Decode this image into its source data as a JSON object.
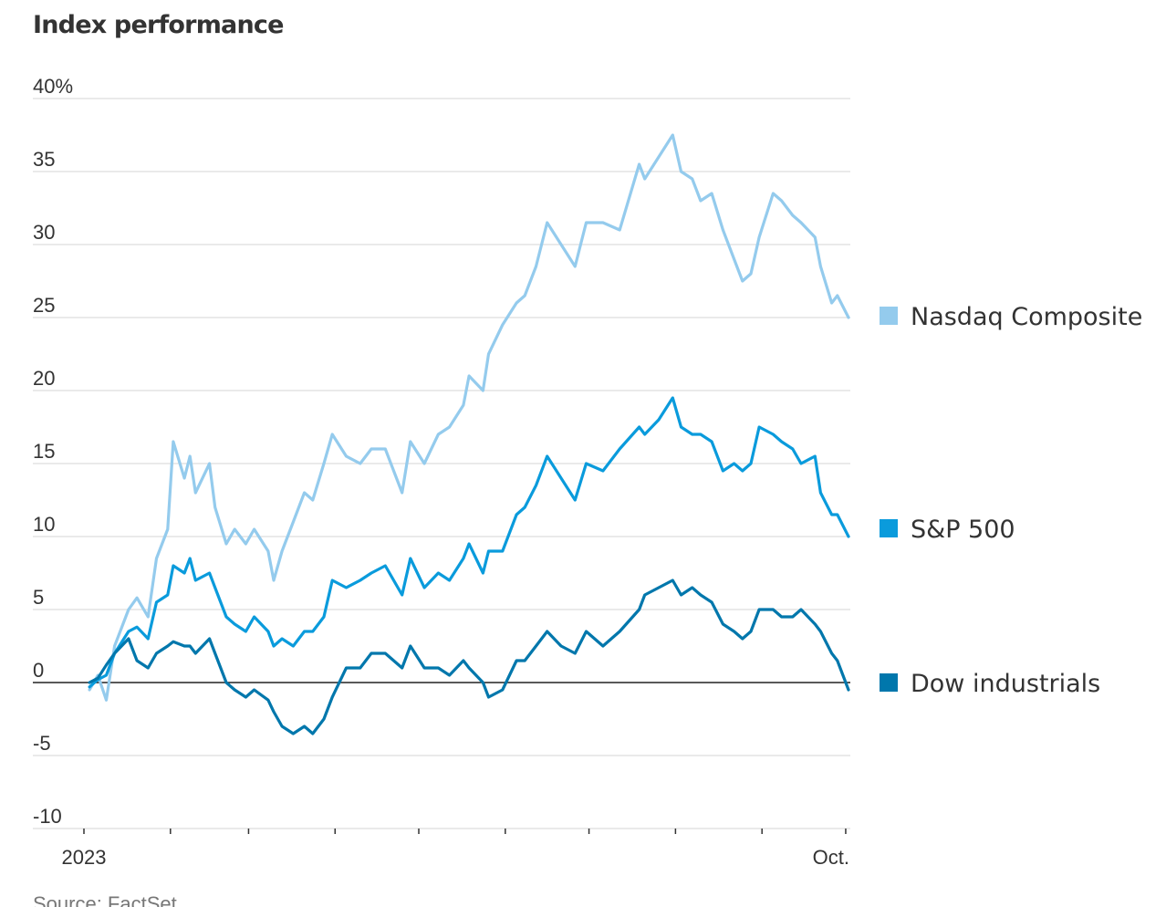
{
  "title": "Index performance",
  "source": "Source: FactSet",
  "colors": {
    "grid": "#dddddd",
    "zero_line": "#222222",
    "axis_text": "#333333"
  },
  "chart_data": {
    "type": "line",
    "title": "Index performance",
    "xlabel": "",
    "ylabel": "",
    "ylim": [
      -10,
      40
    ],
    "yticks": [
      {
        "value": 40,
        "label": "40%"
      },
      {
        "value": 35,
        "label": "35"
      },
      {
        "value": 30,
        "label": "30"
      },
      {
        "value": 25,
        "label": "25"
      },
      {
        "value": 20,
        "label": "20"
      },
      {
        "value": 15,
        "label": "15"
      },
      {
        "value": 10,
        "label": "10"
      },
      {
        "value": 5,
        "label": "5"
      },
      {
        "value": 0,
        "label": "0"
      },
      {
        "value": -5,
        "label": "-5"
      },
      {
        "value": -10,
        "label": "-10"
      }
    ],
    "xlim": [
      "2023-01-01",
      "2023-10-02"
    ],
    "xticks": [
      {
        "date": "2023-01-01",
        "label": "2023"
      },
      {
        "date": "2023-02-01",
        "label": ""
      },
      {
        "date": "2023-03-01",
        "label": ""
      },
      {
        "date": "2023-04-01",
        "label": ""
      },
      {
        "date": "2023-05-01",
        "label": ""
      },
      {
        "date": "2023-06-01",
        "label": ""
      },
      {
        "date": "2023-07-01",
        "label": ""
      },
      {
        "date": "2023-08-01",
        "label": ""
      },
      {
        "date": "2023-09-01",
        "label": ""
      },
      {
        "date": "2023-10-01",
        "label": "Oct."
      }
    ],
    "grid": true,
    "legend": "right",
    "series": [
      {
        "name": "Nasdaq Composite",
        "color": "#94cbed",
        "points": [
          [
            "2023-01-03",
            -0.5
          ],
          [
            "2023-01-06",
            0.5
          ],
          [
            "2023-01-09",
            -1.2
          ],
          [
            "2023-01-12",
            2.5
          ],
          [
            "2023-01-17",
            5.0
          ],
          [
            "2023-01-20",
            5.8
          ],
          [
            "2023-01-24",
            4.5
          ],
          [
            "2023-01-27",
            8.5
          ],
          [
            "2023-01-31",
            10.5
          ],
          [
            "2023-02-02",
            16.5
          ],
          [
            "2023-02-06",
            14.0
          ],
          [
            "2023-02-08",
            15.5
          ],
          [
            "2023-02-10",
            13.0
          ],
          [
            "2023-02-15",
            15.0
          ],
          [
            "2023-02-17",
            12.0
          ],
          [
            "2023-02-21",
            9.5
          ],
          [
            "2023-02-24",
            10.5
          ],
          [
            "2023-02-28",
            9.5
          ],
          [
            "2023-03-03",
            10.5
          ],
          [
            "2023-03-08",
            9.0
          ],
          [
            "2023-03-10",
            7.0
          ],
          [
            "2023-03-13",
            9.0
          ],
          [
            "2023-03-17",
            11.0
          ],
          [
            "2023-03-21",
            13.0
          ],
          [
            "2023-03-24",
            12.5
          ],
          [
            "2023-03-28",
            15.0
          ],
          [
            "2023-03-31",
            17.0
          ],
          [
            "2023-04-05",
            15.5
          ],
          [
            "2023-04-10",
            15.0
          ],
          [
            "2023-04-14",
            16.0
          ],
          [
            "2023-04-19",
            16.0
          ],
          [
            "2023-04-25",
            13.0
          ],
          [
            "2023-04-28",
            16.5
          ],
          [
            "2023-05-03",
            15.0
          ],
          [
            "2023-05-08",
            17.0
          ],
          [
            "2023-05-12",
            17.5
          ],
          [
            "2023-05-17",
            19.0
          ],
          [
            "2023-05-19",
            21.0
          ],
          [
            "2023-05-24",
            20.0
          ],
          [
            "2023-05-26",
            22.5
          ],
          [
            "2023-05-31",
            24.5
          ],
          [
            "2023-06-05",
            26.0
          ],
          [
            "2023-06-08",
            26.5
          ],
          [
            "2023-06-12",
            28.5
          ],
          [
            "2023-06-16",
            31.5
          ],
          [
            "2023-06-21",
            30.0
          ],
          [
            "2023-06-26",
            28.5
          ],
          [
            "2023-06-30",
            31.5
          ],
          [
            "2023-07-06",
            31.5
          ],
          [
            "2023-07-12",
            31.0
          ],
          [
            "2023-07-19",
            35.5
          ],
          [
            "2023-07-21",
            34.5
          ],
          [
            "2023-07-26",
            36.0
          ],
          [
            "2023-07-31",
            37.5
          ],
          [
            "2023-08-03",
            35.0
          ],
          [
            "2023-08-07",
            34.5
          ],
          [
            "2023-08-10",
            33.0
          ],
          [
            "2023-08-14",
            33.5
          ],
          [
            "2023-08-18",
            31.0
          ],
          [
            "2023-08-22",
            29.0
          ],
          [
            "2023-08-25",
            27.5
          ],
          [
            "2023-08-28",
            28.0
          ],
          [
            "2023-08-31",
            30.5
          ],
          [
            "2023-09-05",
            33.5
          ],
          [
            "2023-09-08",
            33.0
          ],
          [
            "2023-09-12",
            32.0
          ],
          [
            "2023-09-15",
            31.5
          ],
          [
            "2023-09-20",
            30.5
          ],
          [
            "2023-09-22",
            28.5
          ],
          [
            "2023-09-26",
            26.0
          ],
          [
            "2023-09-28",
            26.5
          ],
          [
            "2023-10-02",
            25.0
          ]
        ]
      },
      {
        "name": "S&P 500",
        "color": "#0a9bdc",
        "points": [
          [
            "2023-01-03",
            -0.3
          ],
          [
            "2023-01-06",
            0.2
          ],
          [
            "2023-01-09",
            0.5
          ],
          [
            "2023-01-12",
            2.0
          ],
          [
            "2023-01-17",
            3.5
          ],
          [
            "2023-01-20",
            3.8
          ],
          [
            "2023-01-24",
            3.0
          ],
          [
            "2023-01-27",
            5.5
          ],
          [
            "2023-01-31",
            6.0
          ],
          [
            "2023-02-02",
            8.0
          ],
          [
            "2023-02-06",
            7.5
          ],
          [
            "2023-02-08",
            8.5
          ],
          [
            "2023-02-10",
            7.0
          ],
          [
            "2023-02-15",
            7.5
          ],
          [
            "2023-02-17",
            6.5
          ],
          [
            "2023-02-21",
            4.5
          ],
          [
            "2023-02-24",
            4.0
          ],
          [
            "2023-02-28",
            3.5
          ],
          [
            "2023-03-03",
            4.5
          ],
          [
            "2023-03-08",
            3.5
          ],
          [
            "2023-03-10",
            2.5
          ],
          [
            "2023-03-13",
            3.0
          ],
          [
            "2023-03-17",
            2.5
          ],
          [
            "2023-03-21",
            3.5
          ],
          [
            "2023-03-24",
            3.5
          ],
          [
            "2023-03-28",
            4.5
          ],
          [
            "2023-03-31",
            7.0
          ],
          [
            "2023-04-05",
            6.5
          ],
          [
            "2023-04-10",
            7.0
          ],
          [
            "2023-04-14",
            7.5
          ],
          [
            "2023-04-19",
            8.0
          ],
          [
            "2023-04-25",
            6.0
          ],
          [
            "2023-04-28",
            8.5
          ],
          [
            "2023-05-03",
            6.5
          ],
          [
            "2023-05-08",
            7.5
          ],
          [
            "2023-05-12",
            7.0
          ],
          [
            "2023-05-17",
            8.5
          ],
          [
            "2023-05-19",
            9.5
          ],
          [
            "2023-05-24",
            7.5
          ],
          [
            "2023-05-26",
            9.0
          ],
          [
            "2023-05-31",
            9.0
          ],
          [
            "2023-06-05",
            11.5
          ],
          [
            "2023-06-08",
            12.0
          ],
          [
            "2023-06-12",
            13.5
          ],
          [
            "2023-06-16",
            15.5
          ],
          [
            "2023-06-21",
            14.0
          ],
          [
            "2023-06-26",
            12.5
          ],
          [
            "2023-06-30",
            15.0
          ],
          [
            "2023-07-06",
            14.5
          ],
          [
            "2023-07-12",
            16.0
          ],
          [
            "2023-07-19",
            17.5
          ],
          [
            "2023-07-21",
            17.0
          ],
          [
            "2023-07-26",
            18.0
          ],
          [
            "2023-07-31",
            19.5
          ],
          [
            "2023-08-03",
            17.5
          ],
          [
            "2023-08-07",
            17.0
          ],
          [
            "2023-08-10",
            17.0
          ],
          [
            "2023-08-14",
            16.5
          ],
          [
            "2023-08-18",
            14.5
          ],
          [
            "2023-08-22",
            15.0
          ],
          [
            "2023-08-25",
            14.5
          ],
          [
            "2023-08-28",
            15.0
          ],
          [
            "2023-08-31",
            17.5
          ],
          [
            "2023-09-05",
            17.0
          ],
          [
            "2023-09-08",
            16.5
          ],
          [
            "2023-09-12",
            16.0
          ],
          [
            "2023-09-15",
            15.0
          ],
          [
            "2023-09-20",
            15.5
          ],
          [
            "2023-09-22",
            13.0
          ],
          [
            "2023-09-26",
            11.5
          ],
          [
            "2023-09-28",
            11.5
          ],
          [
            "2023-10-02",
            10.0
          ]
        ]
      },
      {
        "name": "Dow industrials",
        "color": "#0077ac",
        "points": [
          [
            "2023-01-03",
            0.0
          ],
          [
            "2023-01-06",
            0.3
          ],
          [
            "2023-01-09",
            1.2
          ],
          [
            "2023-01-12",
            2.0
          ],
          [
            "2023-01-17",
            3.0
          ],
          [
            "2023-01-20",
            1.5
          ],
          [
            "2023-01-24",
            1.0
          ],
          [
            "2023-01-27",
            2.0
          ],
          [
            "2023-01-31",
            2.5
          ],
          [
            "2023-02-02",
            2.8
          ],
          [
            "2023-02-06",
            2.5
          ],
          [
            "2023-02-08",
            2.5
          ],
          [
            "2023-02-10",
            2.0
          ],
          [
            "2023-02-15",
            3.0
          ],
          [
            "2023-02-17",
            2.0
          ],
          [
            "2023-02-21",
            0.0
          ],
          [
            "2023-02-24",
            -0.5
          ],
          [
            "2023-02-28",
            -1.0
          ],
          [
            "2023-03-03",
            -0.5
          ],
          [
            "2023-03-08",
            -1.2
          ],
          [
            "2023-03-10",
            -2.0
          ],
          [
            "2023-03-13",
            -3.0
          ],
          [
            "2023-03-17",
            -3.5
          ],
          [
            "2023-03-21",
            -3.0
          ],
          [
            "2023-03-24",
            -3.5
          ],
          [
            "2023-03-28",
            -2.5
          ],
          [
            "2023-03-31",
            -1.0
          ],
          [
            "2023-04-05",
            1.0
          ],
          [
            "2023-04-10",
            1.0
          ],
          [
            "2023-04-14",
            2.0
          ],
          [
            "2023-04-19",
            2.0
          ],
          [
            "2023-04-25",
            1.0
          ],
          [
            "2023-04-28",
            2.5
          ],
          [
            "2023-05-03",
            1.0
          ],
          [
            "2023-05-08",
            1.0
          ],
          [
            "2023-05-12",
            0.5
          ],
          [
            "2023-05-17",
            1.5
          ],
          [
            "2023-05-19",
            1.0
          ],
          [
            "2023-05-24",
            0.0
          ],
          [
            "2023-05-26",
            -1.0
          ],
          [
            "2023-05-31",
            -0.5
          ],
          [
            "2023-06-05",
            1.5
          ],
          [
            "2023-06-08",
            1.5
          ],
          [
            "2023-06-12",
            2.5
          ],
          [
            "2023-06-16",
            3.5
          ],
          [
            "2023-06-21",
            2.5
          ],
          [
            "2023-06-26",
            2.0
          ],
          [
            "2023-06-30",
            3.5
          ],
          [
            "2023-07-06",
            2.5
          ],
          [
            "2023-07-12",
            3.5
          ],
          [
            "2023-07-19",
            5.0
          ],
          [
            "2023-07-21",
            6.0
          ],
          [
            "2023-07-26",
            6.5
          ],
          [
            "2023-07-31",
            7.0
          ],
          [
            "2023-08-03",
            6.0
          ],
          [
            "2023-08-07",
            6.5
          ],
          [
            "2023-08-10",
            6.0
          ],
          [
            "2023-08-14",
            5.5
          ],
          [
            "2023-08-18",
            4.0
          ],
          [
            "2023-08-22",
            3.5
          ],
          [
            "2023-08-25",
            3.0
          ],
          [
            "2023-08-28",
            3.5
          ],
          [
            "2023-08-31",
            5.0
          ],
          [
            "2023-09-05",
            5.0
          ],
          [
            "2023-09-08",
            4.5
          ],
          [
            "2023-09-12",
            4.5
          ],
          [
            "2023-09-15",
            5.0
          ],
          [
            "2023-09-20",
            4.0
          ],
          [
            "2023-09-22",
            3.5
          ],
          [
            "2023-09-26",
            2.0
          ],
          [
            "2023-09-28",
            1.5
          ],
          [
            "2023-10-02",
            -0.5
          ]
        ]
      }
    ]
  }
}
